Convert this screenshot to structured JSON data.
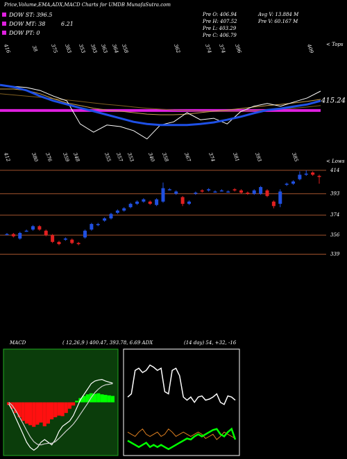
{
  "header": {
    "title": "Price,Volume,EMA,ADX,MACD Charts for UMDB MunafaSutra.com",
    "dow_st": "DOW ST: 396.5",
    "dow_mt": "DOW MT: 38",
    "dow_mt_value": "6.21",
    "dow_pt": "DOW PT: 0",
    "pre_o": "Pre O: 406.94",
    "pre_h": "Pre H: 407.52",
    "pre_l": "Pre L: 403.29",
    "pre_c": "Pre C: 406.79",
    "avg_v": "Avg V: 13.884 M",
    "pre_v": "Pre V: 60.167 M"
  },
  "chart_data": [
    {
      "type": "line",
      "ylim": [
        398.5,
        438.5
      ],
      "tops_label": "< Tops",
      "tops": [
        "416",
        "38",
        "375",
        "383",
        "353",
        "393",
        "363",
        "364",
        "358",
        "362",
        "374",
        "374",
        "396",
        "409"
      ],
      "reference_line": {
        "value": 415.24,
        "color": "#e020e0"
      },
      "series": [
        {
          "color": "#806020",
          "width": 1,
          "values": [
            420.9,
            420.5,
            420.1,
            419.7,
            419.2,
            418.8,
            418.3,
            417.8,
            417.3,
            416.9,
            416.4,
            416.0,
            415.7,
            415.4,
            415.2,
            415.0,
            415.0,
            415.0,
            415.0,
            415.2,
            415.4,
            415.7,
            416.0,
            416.4,
            416.9
          ]
        },
        {
          "color": "#c8a050",
          "width": 1,
          "values": [
            422.5,
            422.5,
            422.0,
            420.9,
            419.2,
            417.8,
            416.9,
            416.0,
            415.4,
            415.0,
            414.5,
            414.0,
            413.8,
            413.8,
            414.0,
            414.5,
            415.0,
            415.4,
            415.9,
            416.4,
            416.9,
            417.3,
            417.8,
            418.3,
            419.0
          ]
        },
        {
          "color": "#ffffff",
          "width": 1,
          "values": [
            423.7,
            423.4,
            423.0,
            422.0,
            420.1,
            418.5,
            410.7,
            407.9,
            410.3,
            409.8,
            408.4,
            405.6,
            410.3,
            411.4,
            414.5,
            412.1,
            412.6,
            410.7,
            414.8,
            416.7,
            417.6,
            416.7,
            418.1,
            419.5,
            421.8
          ]
        },
        {
          "color": "#1e50e6",
          "width": 3,
          "values": [
            423.9,
            423.2,
            422.0,
            420.1,
            418.5,
            417.3,
            416.1,
            415.0,
            413.8,
            412.6,
            411.4,
            410.7,
            410.3,
            410.3,
            410.3,
            410.7,
            411.2,
            412.1,
            413.1,
            414.3,
            415.4,
            415.9,
            416.6,
            417.3,
            418.5
          ]
        }
      ]
    },
    {
      "type": "candlestick",
      "ylim": [
        330,
        417
      ],
      "yticks": [
        339,
        356,
        374,
        393,
        414
      ],
      "grid_color": "#a0522d",
      "up_color": "#2050e0",
      "down_color": "#e02020",
      "lows_label": "< Lows",
      "lows": [
        "412",
        "380",
        "376",
        "359",
        "348",
        "355",
        "357",
        "353",
        "340",
        "358",
        "367",
        "374",
        "381",
        "393",
        "385"
      ],
      "open": [
        357,
        357,
        353,
        360,
        361,
        364,
        360,
        356,
        350,
        352,
        352,
        349,
        354,
        361,
        365,
        369,
        371,
        376,
        378,
        381,
        384,
        386,
        386,
        383,
        386,
        397,
        393,
        390,
        384,
        393,
        396,
        396,
        395,
        396,
        395,
        397,
        396,
        394,
        393,
        393,
        396,
        386,
        384,
        401,
        402,
        406,
        410,
        412,
        409
      ],
      "high": [
        358,
        358,
        359,
        361,
        365,
        365,
        361,
        357,
        351,
        354,
        353,
        350,
        361,
        367,
        367,
        372,
        376,
        379,
        381,
        385,
        387,
        389,
        387,
        389,
        403,
        398,
        396,
        391,
        387,
        395,
        397,
        398,
        396,
        397,
        396,
        398,
        397,
        395,
        397,
        400,
        397,
        387,
        397,
        403,
        405,
        413,
        414,
        413,
        410
      ],
      "low": [
        356,
        354,
        352,
        359,
        360,
        360,
        355,
        349,
        347,
        351,
        348,
        347,
        353,
        360,
        364,
        368,
        370,
        375,
        377,
        380,
        383,
        385,
        383,
        382,
        385,
        396,
        392,
        382,
        383,
        392,
        394,
        395,
        394,
        395,
        394,
        395,
        393,
        392,
        392,
        392,
        390,
        380,
        381,
        400,
        401,
        405,
        409,
        409,
        402
      ],
      "close": [
        357,
        355,
        358,
        360,
        364,
        361,
        356,
        350,
        348,
        353,
        349,
        348,
        360,
        366,
        366,
        371,
        375,
        378,
        380,
        384,
        386,
        388,
        384,
        388,
        398,
        397,
        395,
        384,
        386,
        394,
        395,
        397,
        395,
        396,
        395,
        396,
        394,
        393,
        396,
        399,
        391,
        382,
        395,
        402,
        404,
        410,
        411,
        410,
        408
      ]
    },
    {
      "type": "macd",
      "label": "MACD",
      "params": "( 12,26,9 ) 400.47, 393.78, 6.69 ADX",
      "ylim": [
        -10,
        10
      ],
      "background": "#0b3d0b",
      "border": "#22aa22",
      "positive_color": "#00ff00",
      "negative_color": "#ff1010",
      "histogram": [
        -0.5,
        -1.2,
        -2,
        -2.8,
        -3.5,
        -4,
        -4.3,
        -4.6,
        -4.2,
        -3.8,
        -4.5,
        -4,
        -3.2,
        -2.8,
        -2.5,
        -2.6,
        -2,
        -1.2,
        -0.6,
        0.3,
        0.8,
        1.2,
        1.5,
        1.7,
        1.6,
        1.7,
        1.5,
        1.4,
        1.3,
        1.2
      ],
      "series": [
        {
          "color": "#ffffff",
          "values": [
            -0.3,
            -1.5,
            -3,
            -4.5,
            -6,
            -7.5,
            -8.5,
            -9,
            -8.5,
            -7.5,
            -7,
            -7.5,
            -8,
            -7,
            -5.5,
            -4.5,
            -4,
            -3.5,
            -2.5,
            -1,
            0.5,
            1.5,
            2.5,
            3.5,
            4,
            4.2,
            4.3,
            4,
            3.8,
            3.6
          ]
        },
        {
          "color": "#d0d0d0",
          "values": [
            0,
            -0.6,
            -1.6,
            -2.8,
            -4,
            -5.3,
            -6.5,
            -7.4,
            -7.9,
            -8,
            -7.8,
            -7.7,
            -7.7,
            -7.4,
            -6.8,
            -6.1,
            -5.4,
            -4.8,
            -4.1,
            -3.2,
            -2.2,
            -1.2,
            -0.2,
            0.9,
            1.8,
            2.5,
            3,
            3.3,
            3.4,
            3.5
          ]
        }
      ]
    },
    {
      "type": "adx",
      "params": "(14 day) 54, +32, -16",
      "ylim": [
        0,
        100
      ],
      "border": "#ffffff",
      "series": [
        {
          "color": "#ffffff",
          "width": 1.5,
          "values": [
            55,
            58,
            80,
            82,
            78,
            80,
            85,
            83,
            80,
            82,
            60,
            58,
            80,
            82,
            75,
            55,
            52,
            55,
            50,
            55,
            56,
            52,
            53,
            55,
            58,
            50,
            48,
            56,
            55,
            52
          ]
        },
        {
          "color": "#e08020",
          "width": 1,
          "values": [
            22,
            20,
            18,
            22,
            25,
            20,
            18,
            20,
            22,
            18,
            20,
            25,
            22,
            18,
            20,
            22,
            20,
            18,
            20,
            22,
            20,
            16,
            18,
            20,
            15,
            18,
            22,
            20,
            18,
            16
          ]
        },
        {
          "color": "#00ff00",
          "width": 2.5,
          "values": [
            14,
            12,
            10,
            8,
            10,
            12,
            8,
            10,
            8,
            10,
            8,
            6,
            8,
            10,
            12,
            14,
            16,
            15,
            18,
            20,
            18,
            20,
            22,
            24,
            25,
            20,
            18,
            22,
            25,
            15
          ]
        }
      ]
    }
  ]
}
